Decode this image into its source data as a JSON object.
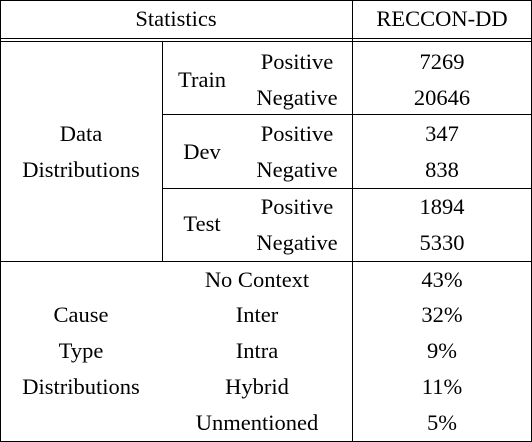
{
  "table": {
    "header": {
      "statistics": "Statistics",
      "dataset": "RECCON-DD"
    },
    "data_distributions": {
      "label_line1": "Data",
      "label_line2": "Distributions",
      "splits": [
        {
          "name": "Train",
          "positive_label": "Positive",
          "positive_value": "7269",
          "negative_label": "Negative",
          "negative_value": "20646"
        },
        {
          "name": "Dev",
          "positive_label": "Positive",
          "positive_value": "347",
          "negative_label": "Negative",
          "negative_value": "838"
        },
        {
          "name": "Test",
          "positive_label": "Positive",
          "positive_value": "1894",
          "negative_label": "Negative",
          "negative_value": "5330"
        }
      ]
    },
    "cause_type_distributions": {
      "label_line1": "Cause",
      "label_line2": "Type",
      "label_line3": "Distributions",
      "rows": [
        {
          "type": "No Context",
          "value": "43%"
        },
        {
          "type": "Inter",
          "value": "32%"
        },
        {
          "type": "Intra",
          "value": "9%"
        },
        {
          "type": "Hybrid",
          "value": "11%"
        },
        {
          "type": "Unmentioned",
          "value": "5%"
        }
      ]
    }
  }
}
